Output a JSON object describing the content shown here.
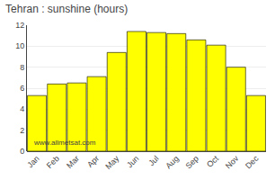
{
  "chart_data": {
    "type": "bar",
    "title": "Tehran : sunshine (hours)",
    "categories": [
      "Jan",
      "Feb",
      "Mar",
      "Apr",
      "May",
      "Jun",
      "Jul",
      "Aug",
      "Sep",
      "Oct",
      "Nov",
      "Dec"
    ],
    "values": [
      5.3,
      6.4,
      6.5,
      7.1,
      9.4,
      11.4,
      11.3,
      11.2,
      10.6,
      10.1,
      8.0,
      5.3
    ],
    "color": "#FFFF00",
    "ylim": [
      0,
      12
    ],
    "yticks": [
      0,
      2,
      4,
      6,
      8,
      10,
      12
    ],
    "grid": true,
    "annotations": [
      "www.allmetsat.com"
    ]
  }
}
